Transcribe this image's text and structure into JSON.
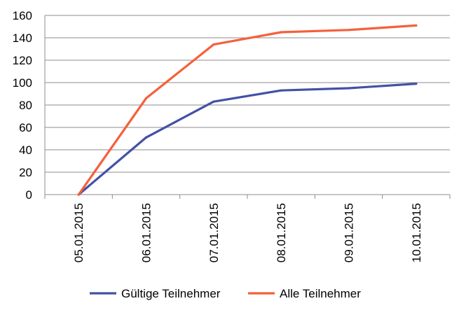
{
  "chart_data": {
    "type": "line",
    "categories": [
      "05.01.2015",
      "06.01.2015",
      "07.01.2015",
      "08.01.2015",
      "09.01.2015",
      "10.01.2015"
    ],
    "series": [
      {
        "name": "Gültige Teilnehmer",
        "values": [
          0,
          51,
          83,
          93,
          95,
          99
        ],
        "color": "#4351a5"
      },
      {
        "name": "Alle Teilnehmer",
        "values": [
          0,
          86,
          134,
          145,
          147,
          151
        ],
        "color": "#f5603a"
      }
    ],
    "yticks": [
      0,
      20,
      40,
      60,
      80,
      100,
      120,
      140,
      160
    ],
    "ylim": [
      0,
      160
    ],
    "grid": true,
    "legend_position": "bottom"
  }
}
